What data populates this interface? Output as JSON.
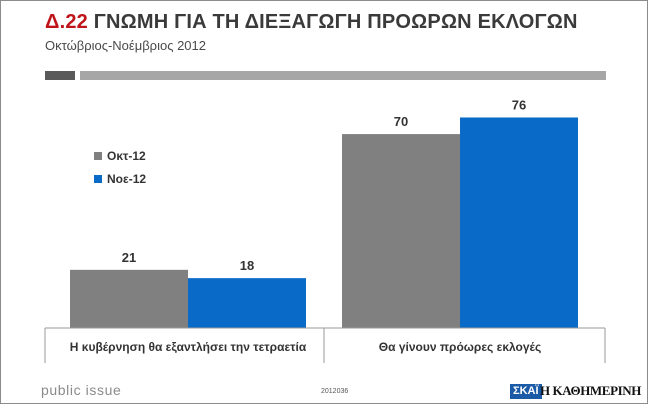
{
  "header": {
    "title_number": "Δ.22",
    "title_text": "ΓΝΩΜΗ ΓΙΑ ΤΗ ΔΙΕΞΑΓΩΓΗ ΠΡΟΩΡΩΝ ΕΚΛΟΓΩΝ",
    "subtitle": "Οκτώβριος-Νοέμβριος 2012"
  },
  "chart_data": {
    "type": "bar",
    "categories": [
      "Η κυβέρνηση θα εξαντλήσει την τετραετία",
      "Θα γίνουν πρόωρες εκλογές"
    ],
    "series": [
      {
        "name": "Οκτ-12",
        "color": "#808080",
        "values": [
          21,
          70
        ]
      },
      {
        "name": "Νοε-12",
        "color": "#0a6ac8",
        "values": [
          18,
          76
        ]
      }
    ],
    "ylim": [
      0,
      100
    ],
    "grid": false,
    "legend": "top-left",
    "data_labels": true
  },
  "footer": {
    "left": "public issue",
    "code": "2012036",
    "logo_skai": "ΣΚΑΪ",
    "logo_kathimerini": "Η ΚΑΘΗΜΕΡΙΝΗ"
  },
  "colors": {
    "title_number": "#c0141b",
    "bar_oct": "#808080",
    "bar_nov": "#0a6ac8",
    "rule_dark": "#5a5a5a",
    "rule_light": "#a6a6a6"
  }
}
